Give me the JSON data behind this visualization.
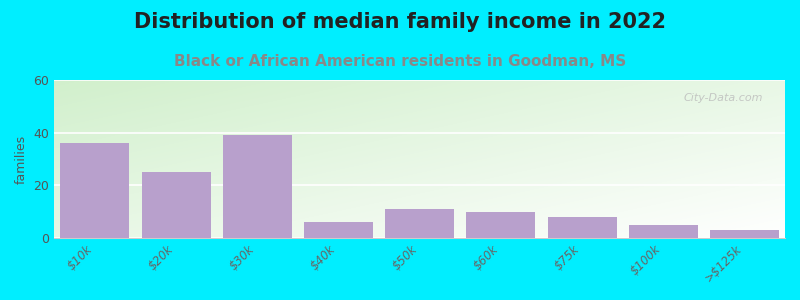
{
  "title": "Distribution of median family income in 2022",
  "subtitle": "Black or African American residents in Goodman, MS",
  "categories": [
    "$10k",
    "$20k",
    "$30k",
    "$40k",
    "$50k",
    "$60k",
    "$75k",
    "$100k",
    ">$125k"
  ],
  "values": [
    36,
    25,
    39,
    6,
    11,
    10,
    8,
    5,
    3
  ],
  "bar_color": "#b8a0cc",
  "background_outer": "#00eeff",
  "ylabel": "families",
  "ylim": [
    0,
    60
  ],
  "yticks": [
    0,
    20,
    40,
    60
  ],
  "title_fontsize": 15,
  "subtitle_fontsize": 11,
  "subtitle_color": "#888888",
  "title_color": "#222222",
  "watermark": "City-Data.com"
}
